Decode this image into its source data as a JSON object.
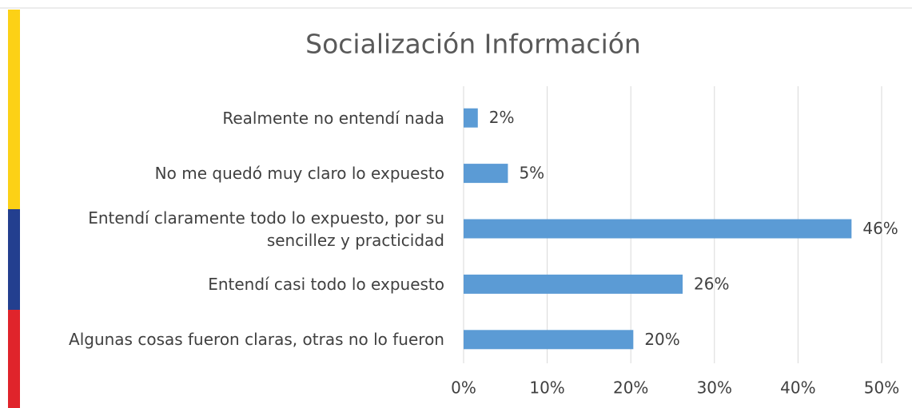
{
  "chart_data": {
    "type": "bar",
    "orientation": "horizontal",
    "title": "Socialización  Información",
    "categories": [
      "Realmente no entendí nada",
      "No me quedó muy claro lo expuesto",
      "Entendí claramente todo lo expuesto, por su sencillez y practicidad",
      "Entendí casi todo lo expuesto",
      "Algunas cosas fueron claras, otras no lo fueron"
    ],
    "values": [
      1.7,
      5.3,
      46.4,
      26.2,
      20.3
    ],
    "value_labels": [
      "2%",
      "5%",
      "46%",
      "26%",
      "20%"
    ],
    "color": "#5b9bd5",
    "xlim": [
      0,
      50
    ],
    "xticks": [
      {
        "value": 0,
        "label": "0%"
      },
      {
        "value": 10,
        "label": "10%"
      },
      {
        "value": 20,
        "label": "20%"
      },
      {
        "value": 30,
        "label": "30%"
      },
      {
        "value": 40,
        "label": "40%"
      },
      {
        "value": 50,
        "label": "50%"
      }
    ],
    "grid": true
  }
}
